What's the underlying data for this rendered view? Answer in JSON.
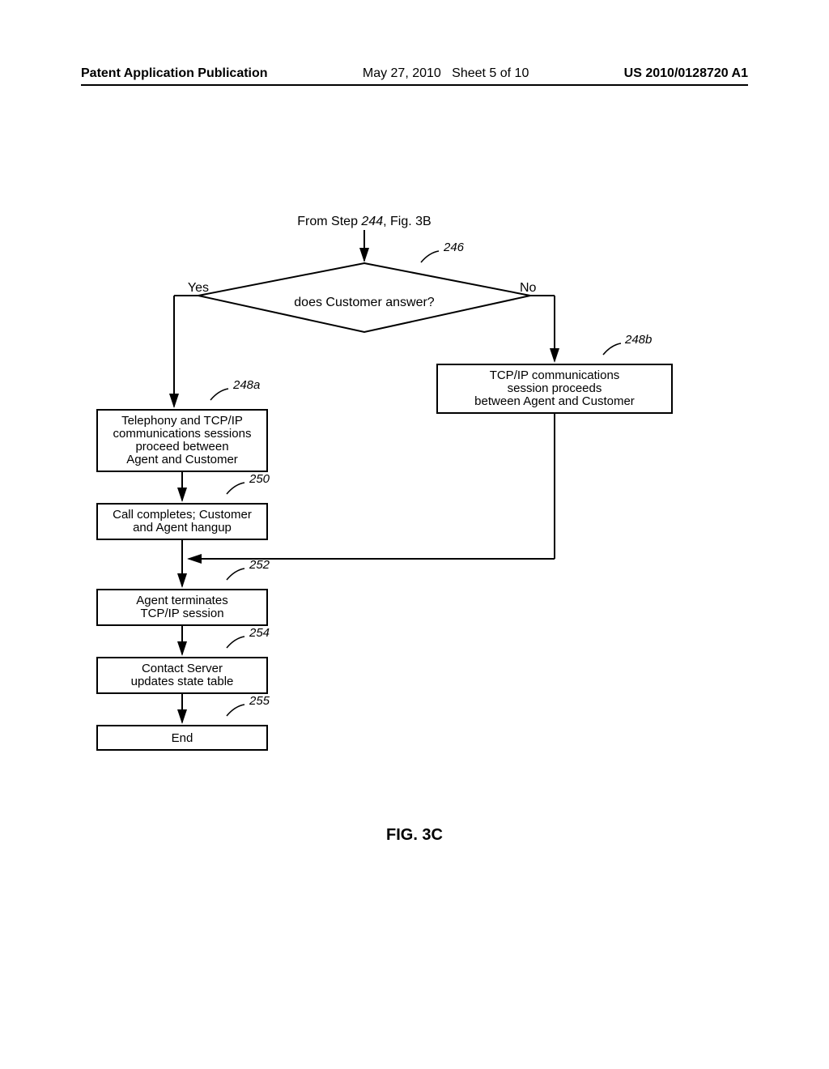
{
  "header": {
    "left": "Patent Application Publication",
    "date": "May 27, 2010",
    "sheet": "Sheet 5 of 10",
    "pubno": "US 2010/0128720 A1"
  },
  "figure_caption": "FIG. 3C",
  "flowchart": {
    "from_step": "From Step 244, Fig. 3B",
    "decision": {
      "ref": "246",
      "text": "does Customer answer?",
      "yes": "Yes",
      "no": "No"
    },
    "boxes": {
      "b248a": {
        "ref": "248a",
        "lines": [
          "Telephony and TCP/IP",
          "communications sessions",
          "proceed between",
          "Agent and Customer"
        ]
      },
      "b248b": {
        "ref": "248b",
        "lines": [
          "TCP/IP communications",
          "session proceeds",
          "between Agent and Customer"
        ]
      },
      "b250": {
        "ref": "250",
        "lines": [
          "Call completes; Customer",
          "and Agent hangup"
        ]
      },
      "b252": {
        "ref": "252",
        "lines": [
          "Agent terminates",
          "TCP/IP session"
        ]
      },
      "b254": {
        "ref": "254",
        "lines": [
          "Contact Server",
          "updates state table"
        ]
      },
      "b255": {
        "ref": "255",
        "lines": [
          "End"
        ]
      }
    },
    "style": {
      "stroke": "#000000",
      "stroke_width": 2,
      "box_fill": "#ffffff",
      "font_color": "#000000"
    }
  }
}
